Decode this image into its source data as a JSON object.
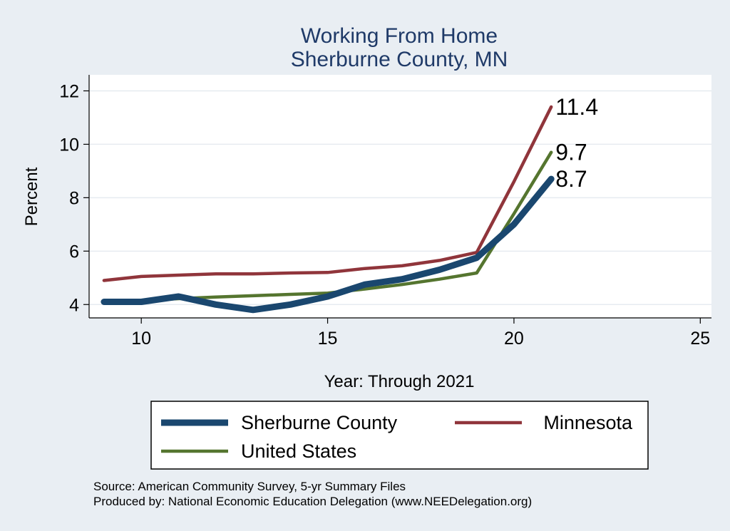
{
  "chart_data": {
    "type": "line",
    "title": "Working From Home",
    "subtitle": "Sherburne County, MN",
    "xlabel": "Year: Through 2021",
    "ylabel": "Percent",
    "xlim": [
      8.6,
      25.3
    ],
    "ylim": [
      3.5,
      12.6
    ],
    "x_ticks": [
      10,
      15,
      20,
      25
    ],
    "y_ticks": [
      4,
      6,
      8,
      10,
      12
    ],
    "grid": true,
    "legend_position": "bottom",
    "series": [
      {
        "name": "Sherburne County",
        "color": "#1a476f",
        "width": "thick",
        "x": [
          9,
          10,
          11,
          12,
          13,
          14,
          15,
          16,
          17,
          18,
          19,
          20,
          21
        ],
        "y": [
          4.1,
          4.1,
          4.3,
          4.0,
          3.8,
          4.0,
          4.3,
          4.75,
          4.95,
          5.3,
          5.75,
          7.0,
          8.7
        ],
        "end_label": "8.7"
      },
      {
        "name": "Minnesota",
        "color": "#90353b",
        "width": "medium",
        "x": [
          9,
          10,
          11,
          12,
          13,
          14,
          15,
          16,
          17,
          18,
          19,
          20,
          21
        ],
        "y": [
          4.9,
          5.05,
          5.1,
          5.15,
          5.15,
          5.18,
          5.2,
          5.35,
          5.45,
          5.65,
          5.95,
          8.6,
          11.4
        ],
        "end_label": "11.4"
      },
      {
        "name": "United States",
        "color": "#55752f",
        "width": "medium",
        "x": [
          9,
          10,
          11,
          12,
          13,
          14,
          15,
          16,
          17,
          18,
          19,
          20,
          21
        ],
        "y": [
          4.05,
          4.15,
          4.22,
          4.28,
          4.33,
          4.38,
          4.43,
          4.58,
          4.75,
          4.95,
          5.18,
          7.4,
          9.7
        ],
        "end_label": "9.7"
      }
    ],
    "notes": [
      "Source: American Community Survey, 5-yr Summary Files",
      "Produced by: National Economic Education Delegation (www.NEEDelegation.org)"
    ]
  }
}
